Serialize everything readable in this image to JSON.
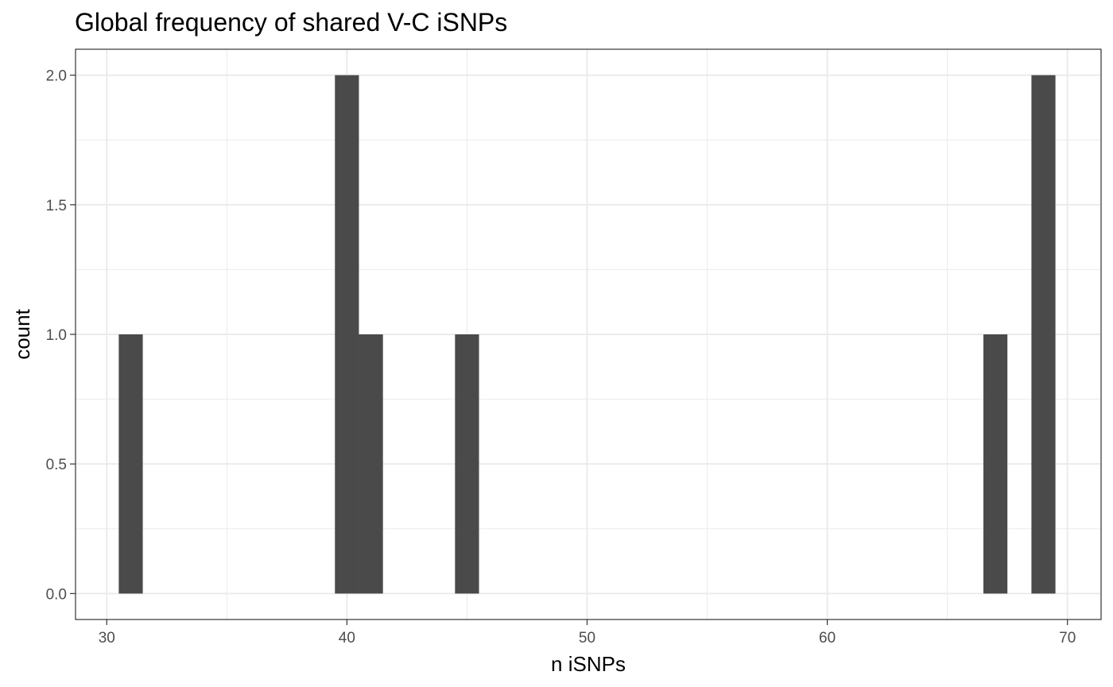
{
  "chart_data": {
    "type": "bar",
    "subtype": "histogram",
    "title": "Global frequency of shared V-C iSNPs",
    "xlabel": "n iSNPs",
    "ylabel": "count",
    "xlim": [
      28.7,
      71.4
    ],
    "ylim": [
      -0.1,
      2.1
    ],
    "x_ticks": [
      30,
      40,
      50,
      60,
      70
    ],
    "x_tick_labels": [
      "30",
      "40",
      "50",
      "60",
      "70"
    ],
    "y_ticks": [
      0,
      0.5,
      1,
      1.5,
      2
    ],
    "y_tick_labels": [
      "0.0",
      "0.5",
      "1.0",
      "1.5",
      "2.0"
    ],
    "bin_width": 1,
    "bins": [
      {
        "center": 31,
        "count": 1
      },
      {
        "center": 40,
        "count": 2
      },
      {
        "center": 41,
        "count": 1
      },
      {
        "center": 45,
        "count": 1
      },
      {
        "center": 67,
        "count": 1
      },
      {
        "center": 69,
        "count": 2
      }
    ],
    "bar_color": "#4a4a4a",
    "grid": true,
    "legend": "none"
  }
}
